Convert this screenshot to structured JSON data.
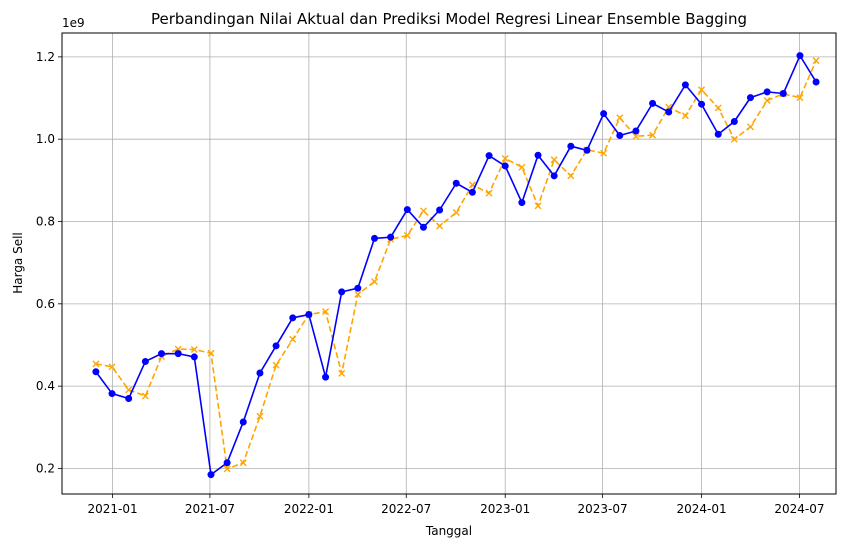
{
  "chart_data": {
    "type": "line",
    "title": "Perbandingan Nilai Aktual dan Prediksi Model Regresi Linear Ensemble Bagging",
    "xlabel": "Tanggal",
    "ylabel": "Harga Sell",
    "y_offset_label": "1e9",
    "grid": true,
    "x_ticks": [
      {
        "date": "2021-01-01",
        "label": "2021-01"
      },
      {
        "date": "2021-07-01",
        "label": "2021-07"
      },
      {
        "date": "2022-01-01",
        "label": "2022-01"
      },
      {
        "date": "2022-07-01",
        "label": "2022-07"
      },
      {
        "date": "2023-01-01",
        "label": "2023-01"
      },
      {
        "date": "2023-07-01",
        "label": "2023-07"
      },
      {
        "date": "2024-01-01",
        "label": "2024-01"
      },
      {
        "date": "2024-07-01",
        "label": "2024-07"
      }
    ],
    "y_ticks": [
      {
        "value": 0.2,
        "label": "0.2"
      },
      {
        "value": 0.4,
        "label": "0.4"
      },
      {
        "value": 0.6,
        "label": "0.6"
      },
      {
        "value": 0.8,
        "label": "0.8"
      },
      {
        "value": 1.0,
        "label": "1.0"
      },
      {
        "value": 1.2,
        "label": "1.2"
      }
    ],
    "xlim": [
      "2020-09-29",
      "2024-09-07"
    ],
    "ylim": [
      0.138,
      1.258
    ],
    "x": [
      "2020-12-01",
      "2020-12-31",
      "2021-01-31",
      "2021-03-03",
      "2021-04-02",
      "2021-05-03",
      "2021-06-02",
      "2021-07-03",
      "2021-08-02",
      "2021-09-01",
      "2021-10-02",
      "2021-11-01",
      "2021-12-02",
      "2022-01-01",
      "2022-02-01",
      "2022-03-03",
      "2022-04-02",
      "2022-05-03",
      "2022-06-02",
      "2022-07-03",
      "2022-08-02",
      "2022-09-01",
      "2022-10-02",
      "2022-11-01",
      "2022-12-02",
      "2023-01-01",
      "2023-02-01",
      "2023-03-03",
      "2023-04-02",
      "2023-05-03",
      "2023-06-02",
      "2023-07-03",
      "2023-08-02",
      "2023-09-01",
      "2023-10-02",
      "2023-11-01",
      "2023-12-02",
      "2024-01-01",
      "2024-02-01",
      "2024-03-02",
      "2024-04-01",
      "2024-05-02",
      "2024-06-01",
      "2024-07-02",
      "2024-08-01"
    ],
    "series": [
      {
        "color": "#0000ff",
        "line_style": "solid",
        "marker": "circle",
        "values": [
          0.435,
          0.382,
          0.37,
          0.46,
          0.479,
          0.479,
          0.471,
          0.185,
          0.214,
          0.313,
          0.432,
          0.498,
          0.566,
          0.574,
          0.422,
          0.629,
          0.638,
          0.759,
          0.762,
          0.829,
          0.786,
          0.828,
          0.893,
          0.871,
          0.96,
          0.935,
          0.846,
          0.961,
          0.911,
          0.983,
          0.973,
          1.062,
          1.009,
          1.02,
          1.087,
          1.066,
          1.132,
          1.085,
          1.012,
          1.043,
          1.101,
          1.115,
          1.111,
          1.203,
          1.139
        ]
      },
      {
        "color": "#ffa500",
        "line_style": "dashed",
        "marker": "x",
        "values": [
          0.454,
          0.447,
          0.391,
          0.376,
          0.472,
          0.49,
          0.489,
          0.48,
          0.199,
          0.214,
          0.327,
          0.451,
          0.514,
          0.574,
          0.581,
          0.431,
          0.623,
          0.654,
          0.757,
          0.766,
          0.826,
          0.789,
          0.822,
          0.889,
          0.869,
          0.953,
          0.932,
          0.838,
          0.95,
          0.911,
          0.974,
          0.966,
          1.052,
          1.007,
          1.01,
          1.078,
          1.057,
          1.12,
          1.076,
          1.0,
          1.03,
          1.094,
          1.11,
          1.101,
          1.191
        ]
      }
    ]
  }
}
